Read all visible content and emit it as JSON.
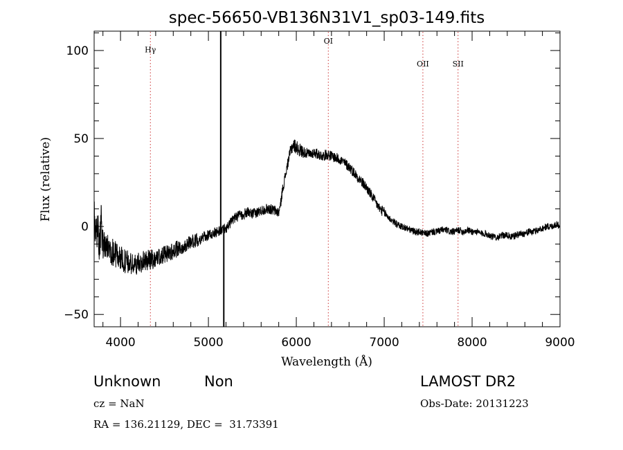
{
  "chart_data": {
    "type": "line",
    "title": "spec-56650-VB136N31V1_sp03-149.fits",
    "xlabel": "Wavelength (Å)",
    "ylabel": "Flux (relative)",
    "xlim": [
      3700,
      9000
    ],
    "ylim": [
      -57,
      111
    ],
    "xticks": [
      4000,
      5000,
      6000,
      7000,
      8000,
      9000
    ],
    "yticks": [
      -50,
      0,
      50,
      100
    ],
    "grid": false,
    "series": [
      {
        "x": [
          3700,
          3720,
          3740,
          3760,
          3780,
          3800,
          3850,
          3900,
          3950,
          4000,
          4050,
          4100,
          4150,
          4200,
          4250,
          4300,
          4350,
          4400,
          4450,
          4500,
          4550,
          4600,
          4650,
          4700,
          4750,
          4800,
          4850,
          4900,
          4950,
          5000,
          5050,
          5100,
          5150,
          5200,
          5250,
          5300,
          5350,
          5400,
          5450,
          5500,
          5550,
          5600,
          5650,
          5700,
          5750,
          5800,
          5820,
          5840,
          5860,
          5880,
          5900,
          5920,
          5940,
          5960,
          5980,
          6000,
          6050,
          6100,
          6150,
          6200,
          6250,
          6300,
          6350,
          6400,
          6450,
          6500,
          6550,
          6600,
          6650,
          6700,
          6750,
          6800,
          6850,
          6900,
          6950,
          7000,
          7050,
          7100,
          7150,
          7200,
          7250,
          7300,
          7350,
          7400,
          7450,
          7500,
          7550,
          7600,
          7650,
          7700,
          7750,
          7800,
          7850,
          7900,
          7950,
          8000,
          8050,
          8100,
          8150,
          8200,
          8250,
          8300,
          8350,
          8400,
          8450,
          8500,
          8550,
          8600,
          8650,
          8700,
          8750,
          8800,
          8850,
          8900,
          8950,
          9000
        ],
        "y": [
          5,
          -10,
          3,
          -15,
          2,
          -10,
          -12,
          -14,
          -16,
          -18,
          -20,
          -21,
          -22,
          -21,
          -20,
          -19,
          -19,
          -18,
          -17,
          -16,
          -15,
          -14,
          -13,
          -12,
          -10,
          -9,
          -8,
          -7,
          -6,
          -5,
          -4,
          -3,
          -2,
          -1,
          2,
          5,
          6,
          7,
          8,
          7,
          8,
          9,
          10,
          10,
          9,
          8,
          12,
          20,
          25,
          30,
          35,
          40,
          44,
          46,
          46,
          45,
          43,
          42,
          41,
          42,
          41,
          40,
          41,
          40,
          39,
          38,
          36,
          34,
          31,
          28,
          25,
          22,
          18,
          14,
          10,
          8,
          5,
          3,
          1,
          0,
          -1,
          -2,
          -3,
          -3,
          -4,
          -4,
          -3,
          -3,
          -2,
          -2,
          -3,
          -3,
          -2,
          -3,
          -2,
          -3,
          -3,
          -4,
          -4,
          -5,
          -6,
          -6,
          -5,
          -5,
          -6,
          -5,
          -4,
          -4,
          -3,
          -3,
          -2,
          -1,
          0,
          0,
          1,
          1
        ],
        "noise": [
          11,
          11,
          11,
          11,
          11,
          9,
          8,
          8,
          8,
          7,
          7,
          7,
          6,
          6,
          6,
          6,
          6,
          5,
          5,
          5,
          5,
          5,
          5,
          4,
          4,
          4,
          4,
          4,
          3,
          3,
          3,
          3,
          3,
          3,
          3,
          3,
          3,
          3,
          3,
          3,
          3,
          3,
          3,
          3,
          3,
          3,
          3,
          3,
          3,
          3,
          3,
          3,
          4,
          4,
          4,
          4,
          4,
          3,
          3,
          3,
          3,
          3,
          3,
          3,
          3,
          3,
          3,
          3,
          3,
          3,
          3,
          3,
          3,
          3,
          3,
          3,
          2,
          2,
          2,
          2,
          2,
          2,
          2,
          2,
          2,
          2,
          2,
          2,
          2,
          2,
          2,
          2,
          2,
          2,
          2,
          2,
          2,
          2,
          2,
          2,
          2,
          2,
          2,
          2,
          2,
          2,
          2,
          2,
          2,
          2,
          2,
          2,
          2,
          2,
          2,
          2
        ]
      }
    ],
    "spikes": [
      {
        "x": 5140,
        "y_top": 111
      },
      {
        "x": 5175,
        "y_bottom": -57
      }
    ],
    "lines": [
      {
        "label": "Hγ",
        "x": 4340,
        "label_y": 99
      },
      {
        "label": "OI",
        "x": 6364,
        "label_y": 104
      },
      {
        "label": "OII",
        "x": 7440,
        "label_y": 91
      },
      {
        "label": "SII",
        "x": 7840,
        "label_y": 91
      }
    ]
  },
  "info": {
    "object_class": "Unknown",
    "subclass": "Non",
    "survey": "LAMOST DR2",
    "cz": "cz = NaN",
    "obs_date": "Obs-Date: 20131223",
    "coords": "RA = 136.21129, DEC =  31.73391"
  }
}
